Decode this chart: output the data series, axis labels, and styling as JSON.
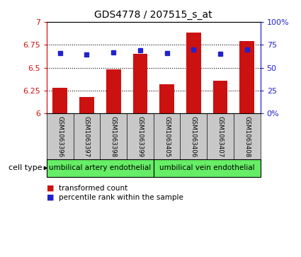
{
  "title": "GDS4778 / 207515_s_at",
  "samples": [
    "GSM1063396",
    "GSM1063397",
    "GSM1063398",
    "GSM1063399",
    "GSM1063405",
    "GSM1063406",
    "GSM1063407",
    "GSM1063408"
  ],
  "transformed_counts": [
    6.28,
    6.18,
    6.48,
    6.65,
    6.32,
    6.88,
    6.36,
    6.79
  ],
  "percentile_ranks": [
    66,
    64,
    67,
    69,
    66,
    70,
    65,
    70
  ],
  "ylim_left": [
    6.0,
    7.0
  ],
  "ylim_right": [
    0,
    100
  ],
  "yticks_left": [
    6.0,
    6.25,
    6.5,
    6.75,
    7.0
  ],
  "ytick_labels_left": [
    "6",
    "6.25",
    "6.5",
    "6.75",
    "7"
  ],
  "yticks_right": [
    0,
    25,
    50,
    75,
    100
  ],
  "ytick_labels_right": [
    "0%",
    "25",
    "50",
    "75",
    "100%"
  ],
  "bar_color": "#cc1111",
  "dot_color": "#2222cc",
  "bar_bottom": 6.0,
  "cell_type_groups": [
    {
      "label": "umbilical artery endothelial",
      "start": 0,
      "end": 4,
      "color": "#66ee66"
    },
    {
      "label": "umbilical vein endothelial",
      "start": 4,
      "end": 8,
      "color": "#66ee66"
    }
  ],
  "cell_type_label": "cell type",
  "legend_items": [
    {
      "label": "transformed count",
      "color": "#cc1111"
    },
    {
      "label": "percentile rank within the sample",
      "color": "#2222cc"
    }
  ],
  "grid_style": "dotted",
  "background_color": "#ffffff",
  "plot_bg": "#ffffff",
  "tick_area_bg": "#c8c8c8"
}
